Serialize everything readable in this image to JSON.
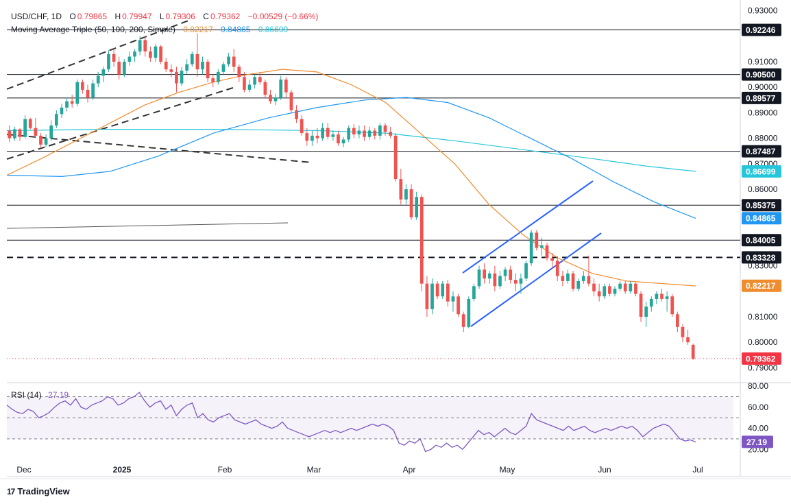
{
  "header": {
    "symbol": "USD/CHF, 1D",
    "o_label": "O",
    "o_value": "0.79865",
    "h_label": "H",
    "h_value": "0.79947",
    "l_label": "L",
    "l_value": "0.79306",
    "c_label": "C",
    "c_value": "0.79362",
    "change": "−0.00529 (−0.66%)",
    "ma_title": "Moving Average Triple (50, 100, 200, Simple)",
    "ma50_value": "0.82217",
    "ma100_value": "0.84865",
    "ma200_value": "0.86699"
  },
  "rsi_header": {
    "title": "RSI (14)",
    "value": "27.19"
  },
  "branding": {
    "logo": "17",
    "name": "TradingView"
  },
  "colors": {
    "up": "#26a69a",
    "down": "#ef5350",
    "ma50": "#f08c2e",
    "ma100": "#2196f3",
    "ma200": "#26c6da",
    "rsi": "#7e57c2",
    "channel": "#2962ff",
    "last_price": "#f23645"
  },
  "chart_data": {
    "type": "candlestick",
    "instrument": "USD/CHF",
    "timeframe": "1D",
    "price_axis": {
      "range": [
        0.785,
        0.9315
      ],
      "ticks": [
        0.93,
        0.91,
        0.9,
        0.89,
        0.88,
        0.87,
        0.86,
        0.83,
        0.81,
        0.8,
        0.79
      ],
      "tick_labels": [
        "0.93000",
        "0.91000",
        "0.90000",
        "0.89000",
        "0.88000",
        "0.87000",
        "0.86000",
        "0.83000",
        "0.81000",
        "0.80000",
        "0.79000"
      ]
    },
    "time_axis": {
      "labels": [
        "Dec",
        "2025",
        "Feb",
        "Mar",
        "Apr",
        "May",
        "Jun",
        "Jul"
      ]
    },
    "levels": [
      {
        "value": 0.92246,
        "label": "0.92246"
      },
      {
        "value": 0.905,
        "label": "0.90500"
      },
      {
        "value": 0.89577,
        "label": "0.89577"
      },
      {
        "value": 0.87487,
        "label": "0.87487"
      },
      {
        "value": 0.85375,
        "label": "0.85375"
      },
      {
        "value": 0.84005,
        "label": "0.84005"
      },
      {
        "value": 0.83328,
        "label": "0.83328",
        "style": "dashed"
      }
    ],
    "price_tags": [
      {
        "value": 0.86699,
        "label": "0.86699",
        "series": "ma200"
      },
      {
        "value": 0.84865,
        "label": "0.84865",
        "series": "ma100"
      },
      {
        "value": 0.82217,
        "label": "0.82217",
        "series": "ma50"
      },
      {
        "value": 0.79362,
        "label": "0.79362",
        "series": "last"
      }
    ],
    "candles": [
      [
        0.883,
        0.885,
        0.8785,
        0.88
      ],
      [
        0.88,
        0.8845,
        0.879,
        0.8835
      ],
      [
        0.8835,
        0.884,
        0.879,
        0.8805
      ],
      [
        0.8805,
        0.889,
        0.88,
        0.8875
      ],
      [
        0.8875,
        0.888,
        0.8835,
        0.884
      ],
      [
        0.884,
        0.888,
        0.88,
        0.881
      ],
      [
        0.881,
        0.882,
        0.876,
        0.8775
      ],
      [
        0.8775,
        0.8815,
        0.8765,
        0.88
      ],
      [
        0.88,
        0.887,
        0.879,
        0.885
      ],
      [
        0.885,
        0.891,
        0.884,
        0.8895
      ],
      [
        0.8895,
        0.8935,
        0.888,
        0.892
      ],
      [
        0.892,
        0.896,
        0.8905,
        0.8945
      ],
      [
        0.8945,
        0.897,
        0.892,
        0.8935
      ],
      [
        0.8935,
        0.903,
        0.8925,
        0.902
      ],
      [
        0.902,
        0.903,
        0.8975,
        0.899
      ],
      [
        0.899,
        0.901,
        0.894,
        0.896
      ],
      [
        0.896,
        0.903,
        0.895,
        0.9015
      ],
      [
        0.9015,
        0.906,
        0.9,
        0.9045
      ],
      [
        0.9045,
        0.908,
        0.902,
        0.907
      ],
      [
        0.907,
        0.9145,
        0.906,
        0.913
      ],
      [
        0.913,
        0.915,
        0.908,
        0.91
      ],
      [
        0.91,
        0.912,
        0.903,
        0.905
      ],
      [
        0.905,
        0.911,
        0.904,
        0.91
      ],
      [
        0.91,
        0.914,
        0.9085,
        0.912
      ],
      [
        0.912,
        0.915,
        0.91,
        0.914
      ],
      [
        0.914,
        0.92,
        0.9125,
        0.9185
      ],
      [
        0.9185,
        0.92,
        0.912,
        0.914
      ],
      [
        0.914,
        0.916,
        0.91,
        0.9115
      ],
      [
        0.9115,
        0.917,
        0.91,
        0.916
      ],
      [
        0.916,
        0.9165,
        0.909,
        0.91
      ],
      [
        0.91,
        0.9115,
        0.906,
        0.907
      ],
      [
        0.907,
        0.909,
        0.904,
        0.906
      ],
      [
        0.906,
        0.908,
        0.898,
        0.9015
      ],
      [
        0.9015,
        0.908,
        0.9005,
        0.9065
      ],
      [
        0.9065,
        0.911,
        0.905,
        0.909
      ],
      [
        0.909,
        0.914,
        0.908,
        0.913
      ],
      [
        0.913,
        0.921,
        0.904,
        0.907
      ],
      [
        0.907,
        0.912,
        0.905,
        0.91
      ],
      [
        0.91,
        0.911,
        0.902,
        0.9035
      ],
      [
        0.9035,
        0.905,
        0.9,
        0.902
      ],
      [
        0.902,
        0.907,
        0.901,
        0.906
      ],
      [
        0.906,
        0.91,
        0.905,
        0.909
      ],
      [
        0.909,
        0.9135,
        0.908,
        0.912
      ],
      [
        0.912,
        0.915,
        0.906,
        0.908
      ],
      [
        0.908,
        0.909,
        0.902,
        0.904
      ],
      [
        0.904,
        0.906,
        0.898,
        0.899
      ],
      [
        0.899,
        0.903,
        0.898,
        0.901
      ],
      [
        0.901,
        0.905,
        0.8995,
        0.904
      ],
      [
        0.904,
        0.906,
        0.901,
        0.902
      ],
      [
        0.902,
        0.903,
        0.896,
        0.897
      ],
      [
        0.897,
        0.899,
        0.8935,
        0.8945
      ],
      [
        0.8945,
        0.8975,
        0.893,
        0.896
      ],
      [
        0.896,
        0.9045,
        0.895,
        0.903
      ],
      [
        0.903,
        0.904,
        0.896,
        0.898
      ],
      [
        0.898,
        0.899,
        0.89,
        0.891
      ],
      [
        0.891,
        0.893,
        0.886,
        0.8875
      ],
      [
        0.8875,
        0.889,
        0.881,
        0.882
      ],
      [
        0.882,
        0.884,
        0.877,
        0.879
      ],
      [
        0.879,
        0.883,
        0.877,
        0.881
      ],
      [
        0.881,
        0.884,
        0.878,
        0.88
      ],
      [
        0.88,
        0.886,
        0.879,
        0.884
      ],
      [
        0.884,
        0.886,
        0.8795,
        0.8805
      ],
      [
        0.8805,
        0.883,
        0.879,
        0.8815
      ],
      [
        0.8815,
        0.883,
        0.877,
        0.878
      ],
      [
        0.878,
        0.8805,
        0.8765,
        0.8795
      ],
      [
        0.8795,
        0.885,
        0.8785,
        0.884
      ],
      [
        0.884,
        0.8855,
        0.88,
        0.8815
      ],
      [
        0.8815,
        0.885,
        0.88,
        0.883
      ],
      [
        0.883,
        0.885,
        0.879,
        0.8805
      ],
      [
        0.8805,
        0.8845,
        0.8795,
        0.883
      ],
      [
        0.883,
        0.884,
        0.8795,
        0.881
      ],
      [
        0.881,
        0.886,
        0.8795,
        0.885
      ],
      [
        0.885,
        0.886,
        0.881,
        0.8825
      ],
      [
        0.8825,
        0.8845,
        0.88,
        0.881
      ],
      [
        0.881,
        0.882,
        0.863,
        0.864
      ],
      [
        0.864,
        0.868,
        0.854,
        0.856
      ],
      [
        0.856,
        0.862,
        0.854,
        0.86
      ],
      [
        0.86,
        0.862,
        0.848,
        0.849
      ],
      [
        0.849,
        0.859,
        0.848,
        0.857
      ],
      [
        0.857,
        0.858,
        0.82,
        0.823
      ],
      [
        0.823,
        0.826,
        0.81,
        0.813
      ],
      [
        0.813,
        0.825,
        0.811,
        0.823
      ],
      [
        0.823,
        0.824,
        0.817,
        0.818
      ],
      [
        0.818,
        0.824,
        0.817,
        0.823
      ],
      [
        0.823,
        0.8245,
        0.814,
        0.816
      ],
      [
        0.816,
        0.82,
        0.812,
        0.818
      ],
      [
        0.818,
        0.819,
        0.81,
        0.811
      ],
      [
        0.811,
        0.812,
        0.804,
        0.806
      ],
      [
        0.806,
        0.818,
        0.8055,
        0.817
      ],
      [
        0.817,
        0.823,
        0.816,
        0.822
      ],
      [
        0.822,
        0.83,
        0.821,
        0.8285
      ],
      [
        0.8285,
        0.831,
        0.823,
        0.825
      ],
      [
        0.825,
        0.828,
        0.823,
        0.827
      ],
      [
        0.827,
        0.83,
        0.82,
        0.822
      ],
      [
        0.822,
        0.828,
        0.821,
        0.826
      ],
      [
        0.826,
        0.8295,
        0.824,
        0.8285
      ],
      [
        0.8285,
        0.83,
        0.823,
        0.8245
      ],
      [
        0.8245,
        0.827,
        0.82,
        0.823
      ],
      [
        0.823,
        0.827,
        0.819,
        0.825
      ],
      [
        0.825,
        0.832,
        0.824,
        0.831
      ],
      [
        0.831,
        0.844,
        0.83,
        0.843
      ],
      [
        0.843,
        0.844,
        0.836,
        0.837
      ],
      [
        0.837,
        0.841,
        0.834,
        0.838
      ],
      [
        0.838,
        0.839,
        0.832,
        0.833
      ],
      [
        0.833,
        0.835,
        0.829,
        0.832
      ],
      [
        0.832,
        0.833,
        0.824,
        0.826
      ],
      [
        0.826,
        0.828,
        0.822,
        0.824
      ],
      [
        0.824,
        0.8285,
        0.823,
        0.827
      ],
      [
        0.827,
        0.828,
        0.82,
        0.821
      ],
      [
        0.821,
        0.825,
        0.82,
        0.824
      ],
      [
        0.824,
        0.828,
        0.823,
        0.826
      ],
      [
        0.826,
        0.834,
        0.822,
        0.823
      ],
      [
        0.823,
        0.825,
        0.818,
        0.82
      ],
      [
        0.82,
        0.823,
        0.816,
        0.818
      ],
      [
        0.818,
        0.823,
        0.817,
        0.822
      ],
      [
        0.822,
        0.823,
        0.818,
        0.819
      ],
      [
        0.819,
        0.822,
        0.818,
        0.821
      ],
      [
        0.821,
        0.824,
        0.82,
        0.823
      ],
      [
        0.823,
        0.824,
        0.819,
        0.82
      ],
      [
        0.82,
        0.824,
        0.819,
        0.823
      ],
      [
        0.823,
        0.8235,
        0.818,
        0.819
      ],
      [
        0.819,
        0.82,
        0.808,
        0.81
      ],
      [
        0.81,
        0.816,
        0.806,
        0.814
      ],
      [
        0.814,
        0.818,
        0.812,
        0.817
      ],
      [
        0.817,
        0.82,
        0.815,
        0.819
      ],
      [
        0.819,
        0.821,
        0.816,
        0.817
      ],
      [
        0.817,
        0.82,
        0.812,
        0.818
      ],
      [
        0.818,
        0.819,
        0.81,
        0.811
      ],
      [
        0.811,
        0.812,
        0.804,
        0.806
      ],
      [
        0.806,
        0.807,
        0.8,
        0.802
      ],
      [
        0.802,
        0.805,
        0.799,
        0.8
      ],
      [
        0.799,
        0.7995,
        0.7931,
        0.7936
      ]
    ],
    "indicators": {
      "ma50": [
        [
          0,
          0.8655
        ],
        [
          0.05,
          0.872
        ],
        [
          0.1,
          0.879
        ],
        [
          0.15,
          0.886
        ],
        [
          0.2,
          0.893
        ],
        [
          0.25,
          0.898
        ],
        [
          0.3,
          0.902
        ],
        [
          0.35,
          0.905
        ],
        [
          0.4,
          0.907
        ],
        [
          0.45,
          0.906
        ],
        [
          0.5,
          0.901
        ],
        [
          0.55,
          0.894
        ],
        [
          0.6,
          0.882
        ],
        [
          0.65,
          0.87
        ],
        [
          0.7,
          0.854
        ],
        [
          0.75,
          0.842
        ],
        [
          0.8,
          0.833
        ],
        [
          0.85,
          0.827
        ],
        [
          0.9,
          0.824
        ],
        [
          1.0,
          0.8221
        ]
      ],
      "ma100": [
        [
          0,
          0.8655
        ],
        [
          0.08,
          0.865
        ],
        [
          0.15,
          0.867
        ],
        [
          0.22,
          0.873
        ],
        [
          0.3,
          0.882
        ],
        [
          0.38,
          0.888
        ],
        [
          0.45,
          0.892
        ],
        [
          0.52,
          0.895
        ],
        [
          0.58,
          0.896
        ],
        [
          0.64,
          0.894
        ],
        [
          0.7,
          0.888
        ],
        [
          0.76,
          0.88
        ],
        [
          0.82,
          0.872
        ],
        [
          0.88,
          0.863
        ],
        [
          0.94,
          0.855
        ],
        [
          1.0,
          0.8486
        ]
      ],
      "ma200": [
        [
          0,
          0.883
        ],
        [
          0.15,
          0.8835
        ],
        [
          0.3,
          0.8835
        ],
        [
          0.45,
          0.883
        ],
        [
          0.55,
          0.882
        ],
        [
          0.65,
          0.879
        ],
        [
          0.75,
          0.8755
        ],
        [
          0.85,
          0.872
        ],
        [
          0.93,
          0.869
        ],
        [
          1.0,
          0.867
        ]
      ],
      "rsi": [
        62,
        58,
        55,
        54,
        58,
        56,
        50,
        52,
        55,
        60,
        64,
        66,
        62,
        68,
        60,
        58,
        62,
        64,
        66,
        70,
        68,
        62,
        64,
        68,
        70,
        74,
        66,
        60,
        64,
        66,
        58,
        62,
        52,
        58,
        62,
        64,
        50,
        54,
        48,
        46,
        50,
        52,
        54,
        48,
        46,
        44,
        46,
        48,
        44,
        42,
        40,
        42,
        46,
        40,
        38,
        36,
        34,
        32,
        34,
        36,
        38,
        36,
        38,
        36,
        38,
        40,
        38,
        40,
        42,
        44,
        42,
        44,
        42,
        38,
        26,
        24,
        28,
        26,
        30,
        18,
        20,
        24,
        22,
        26,
        22,
        24,
        20,
        26,
        32,
        38,
        34,
        36,
        32,
        36,
        40,
        36,
        34,
        38,
        42,
        54,
        48,
        46,
        44,
        42,
        40,
        38,
        42,
        38,
        40,
        42,
        38,
        36,
        38,
        40,
        38,
        40,
        42,
        40,
        42,
        38,
        32,
        36,
        40,
        42,
        44,
        42,
        36,
        30,
        28,
        29,
        27
      ]
    },
    "rsi_axis": {
      "range": [
        17,
        82
      ],
      "tick_labels": [
        "80.00",
        "60.00",
        "40.00",
        "20.00"
      ],
      "ticks": [
        80,
        60,
        40,
        20
      ],
      "band": [
        30,
        70
      ]
    }
  }
}
